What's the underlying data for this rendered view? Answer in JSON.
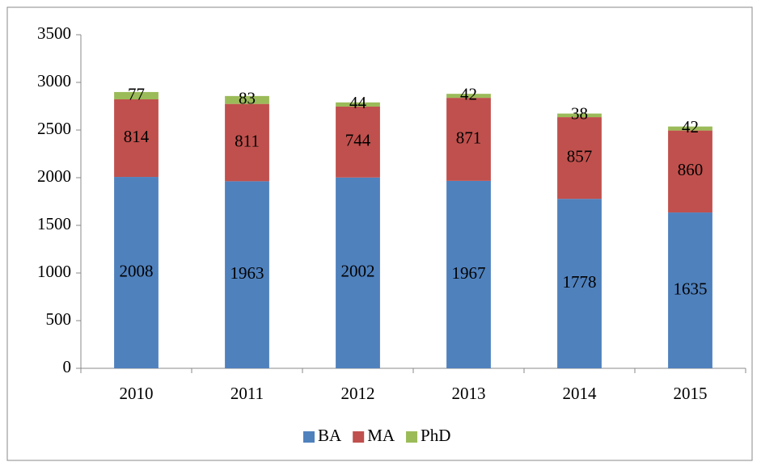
{
  "chart_data": {
    "type": "bar",
    "stacked": true,
    "categories": [
      "2010",
      "2011",
      "2012",
      "2013",
      "2014",
      "2015"
    ],
    "series": [
      {
        "name": "BA",
        "color": "#4f81bd",
        "values": [
          2008,
          1963,
          2002,
          1967,
          1778,
          1635
        ]
      },
      {
        "name": "MA",
        "color": "#c0504d",
        "values": [
          814,
          811,
          744,
          871,
          857,
          860
        ]
      },
      {
        "name": "PhD",
        "color": "#9bbb59",
        "values": [
          77,
          83,
          44,
          42,
          38,
          42
        ]
      }
    ],
    "ylim": [
      0,
      3500
    ],
    "yticks": [
      0,
      500,
      1000,
      1500,
      2000,
      2500,
      3000,
      3500
    ],
    "grid": false,
    "legend": "bottom"
  }
}
